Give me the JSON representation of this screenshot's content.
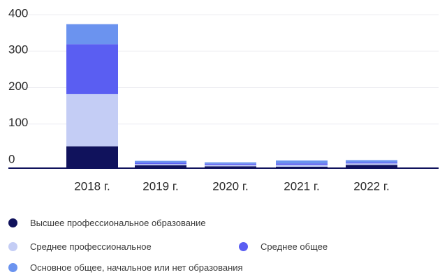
{
  "chart_data": {
    "type": "bar",
    "stacked": true,
    "categories": [
      "2018 г.",
      "2019 г.",
      "2020 г.",
      "2021 г.",
      "2022 г."
    ],
    "series": [
      {
        "name": "Высшее профессиональное образование",
        "color": "#10125c",
        "values": [
          60,
          8,
          5,
          4,
          9
        ]
      },
      {
        "name": "Среднее профессиональное",
        "color": "#c4cdf5",
        "values": [
          143,
          3,
          4,
          5,
          4
        ]
      },
      {
        "name": "Среднее общее",
        "color": "#5a5ef2",
        "values": [
          137,
          4,
          3,
          4,
          3
        ]
      },
      {
        "name": "Основное общее, начальное или нет образования",
        "color": "#6b93ef",
        "values": [
          55,
          5,
          4,
          8,
          6
        ]
      }
    ],
    "yticks": [
      0,
      100,
      200,
      300,
      400
    ],
    "ylim": [
      -25,
      410
    ],
    "grid": true,
    "legend_placement": "bottom"
  }
}
